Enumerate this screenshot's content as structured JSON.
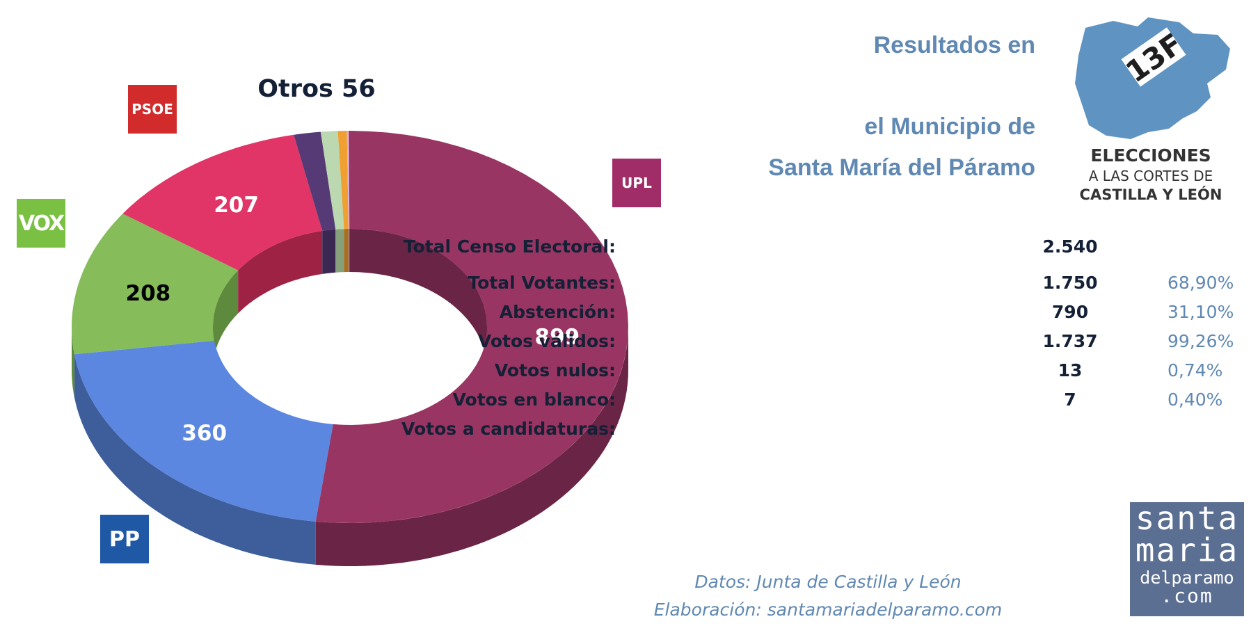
{
  "header": {
    "title_line1": "Resultados en",
    "title_line2": "el Municipio de",
    "title_line3": "Santa María del Páramo"
  },
  "logo_13f": {
    "badge": "13F",
    "line1": "ELECCIONES",
    "line2": "A LAS CORTES DE",
    "line3": "CASTILLA Y LEÓN",
    "color": "#5f93c1"
  },
  "stats": [
    {
      "label": "Total Censo Electoral:",
      "value": "2.540",
      "pct": ""
    },
    {
      "label": "Total Votantes:",
      "value": "1.750",
      "pct": "68,90%"
    },
    {
      "label": "Abstención:",
      "value": "790",
      "pct": "31,10%"
    },
    {
      "label": "Votos válidos:",
      "value": "1.737",
      "pct": "99,26%"
    },
    {
      "label": "Votos nulos:",
      "value": "13",
      "pct": "0,74%"
    },
    {
      "label": "Votos en blanco:",
      "value": "7",
      "pct": "0,40%"
    },
    {
      "label": "Votos a candidaturas:",
      "value": "",
      "pct": ""
    }
  ],
  "credits": {
    "source": "Datos: Junta de Castilla y León",
    "author": "Elaboración: santamariadelparamo.com"
  },
  "site_logo": {
    "line1": "santa",
    "line2": "maria",
    "line3": "delparamo",
    "line4": ".com"
  },
  "party_logos": {
    "psoe": "PSOE",
    "vox": "VOX",
    "upl": "UPL",
    "pp": "PP"
  },
  "chart_data": {
    "type": "pie",
    "donut": true,
    "style_3d": true,
    "annotation": "Otros 56",
    "slices": [
      {
        "label": "UPL",
        "value": 899,
        "color": "#993562",
        "side": "#6a2445",
        "show_label": true,
        "label_color": "#ffffff"
      },
      {
        "label": "PP",
        "value": 360,
        "color": "#5b87e0",
        "side": "#3e5d9b",
        "show_label": true,
        "label_color": "#ffffff"
      },
      {
        "label": "VOX",
        "value": 208,
        "color": "#86bc5a",
        "side": "#5d8a3c",
        "show_label": true,
        "label_color": "#000000"
      },
      {
        "label": "PSOE",
        "value": 207,
        "color": "#e03566",
        "side": "#9e2244",
        "show_label": true,
        "label_color": "#ffffff"
      },
      {
        "label": "",
        "value": 27,
        "color": "#553a75",
        "side": "#3a2852",
        "show_label": false
      },
      {
        "label": "",
        "value": 17,
        "color": "#bcd8b1",
        "side": "#87a07c",
        "show_label": false
      },
      {
        "label": "",
        "value": 9,
        "color": "#f0a030",
        "side": "#a86f20",
        "show_label": false
      },
      {
        "label": "",
        "value": 2,
        "color": "#d8aee0",
        "side": "#987a9c",
        "show_label": false
      },
      {
        "label": "",
        "value": 1,
        "color": "#c01c2a",
        "side": "#80131c",
        "show_label": false
      }
    ]
  }
}
